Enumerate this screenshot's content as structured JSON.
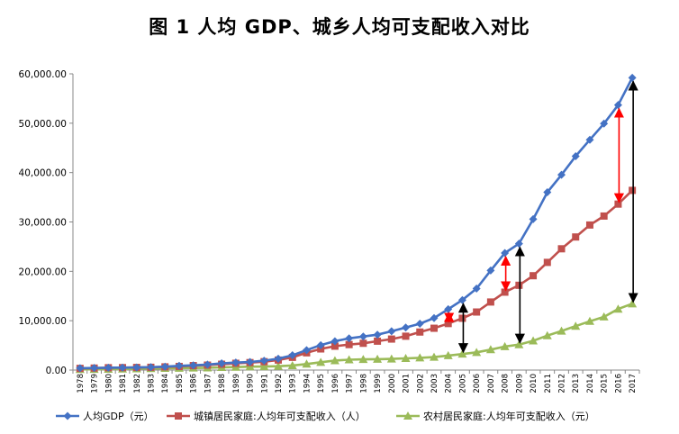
{
  "chart_data": {
    "type": "line",
    "title": "图 1   人均 GDP、城乡人均可支配收入对比",
    "x": [
      "1978",
      "1979",
      "1980",
      "1981",
      "1982",
      "1983",
      "1984",
      "1985",
      "1986",
      "1987",
      "1988",
      "1989",
      "1990",
      "1991",
      "1992",
      "1993",
      "1994",
      "1995",
      "1996",
      "1997",
      "1998",
      "1999",
      "2000",
      "2001",
      "2002",
      "2003",
      "2004",
      "2005",
      "2006",
      "2007",
      "2008",
      "2009",
      "2010",
      "2011",
      "2012",
      "2013",
      "2014",
      "2015",
      "2016",
      "2017"
    ],
    "y_ticks": [
      "0.00",
      "10,000.00",
      "20,000.00",
      "30,000.00",
      "40,000.00",
      "50,000.00",
      "60,000.00"
    ],
    "ylim": [
      0,
      60000
    ],
    "grid": false,
    "legend_position": "bottom",
    "series": [
      {
        "name": "人均GDP（元）",
        "color": "#4472C4",
        "marker": "diamond",
        "values": [
          385,
          423,
          468,
          497,
          533,
          592,
          695,
          858,
          963,
          1112,
          1366,
          1519,
          1644,
          1893,
          2311,
          2998,
          4044,
          5046,
          5846,
          6420,
          6796,
          7159,
          7858,
          8622,
          9398,
          10542,
          12336,
          14185,
          16500,
          20169,
          23708,
          25608,
          30567,
          36018,
          39544,
          43320,
          46652,
          49922,
          53680,
          59201
        ]
      },
      {
        "name": "城镇居民家庭:人均年可支配收入（人）",
        "color": "#C0504D",
        "marker": "square",
        "values": [
          343,
          405,
          478,
          500,
          535,
          565,
          652,
          739,
          900,
          1002,
          1180,
          1374,
          1510,
          1701,
          2027,
          2577,
          3496,
          4283,
          4839,
          5160,
          5425,
          5854,
          6280,
          6860,
          7703,
          8472,
          9422,
          10493,
          11759,
          13786,
          15781,
          17175,
          19109,
          21810,
          24565,
          26955,
          29381,
          31195,
          33616,
          36396
        ]
      },
      {
        "name": "农村居民家庭:人均年可支配收入（元）",
        "color": "#9BBB59",
        "marker": "triangle",
        "values": [
          134,
          160,
          191,
          223,
          270,
          310,
          355,
          398,
          424,
          463,
          545,
          602,
          686,
          709,
          784,
          922,
          1221,
          1578,
          1926,
          2090,
          2162,
          2210,
          2253,
          2366,
          2476,
          2622,
          2936,
          3255,
          3587,
          4140,
          4761,
          5153,
          5919,
          6977,
          7917,
          8896,
          9892,
          10772,
          12363,
          13432
        ]
      }
    ],
    "annotations": [
      {
        "type": "double-arrow",
        "color": "#FF0000",
        "year": "2004",
        "from_series": 1,
        "to_series": 0
      },
      {
        "type": "double-arrow",
        "color": "#000000",
        "year": "2005",
        "from_series": 2,
        "to_series": 0
      },
      {
        "type": "double-arrow",
        "color": "#FF0000",
        "year": "2008",
        "from_series": 1,
        "to_series": 0
      },
      {
        "type": "double-arrow",
        "color": "#000000",
        "year": "2009",
        "from_series": 2,
        "to_series": 0
      },
      {
        "type": "double-arrow",
        "color": "#FF0000",
        "year": "2016",
        "from_series": 1,
        "to_series": 0
      },
      {
        "type": "double-arrow",
        "color": "#000000",
        "year": "2017",
        "from_series": 2,
        "to_series": 0
      }
    ]
  }
}
